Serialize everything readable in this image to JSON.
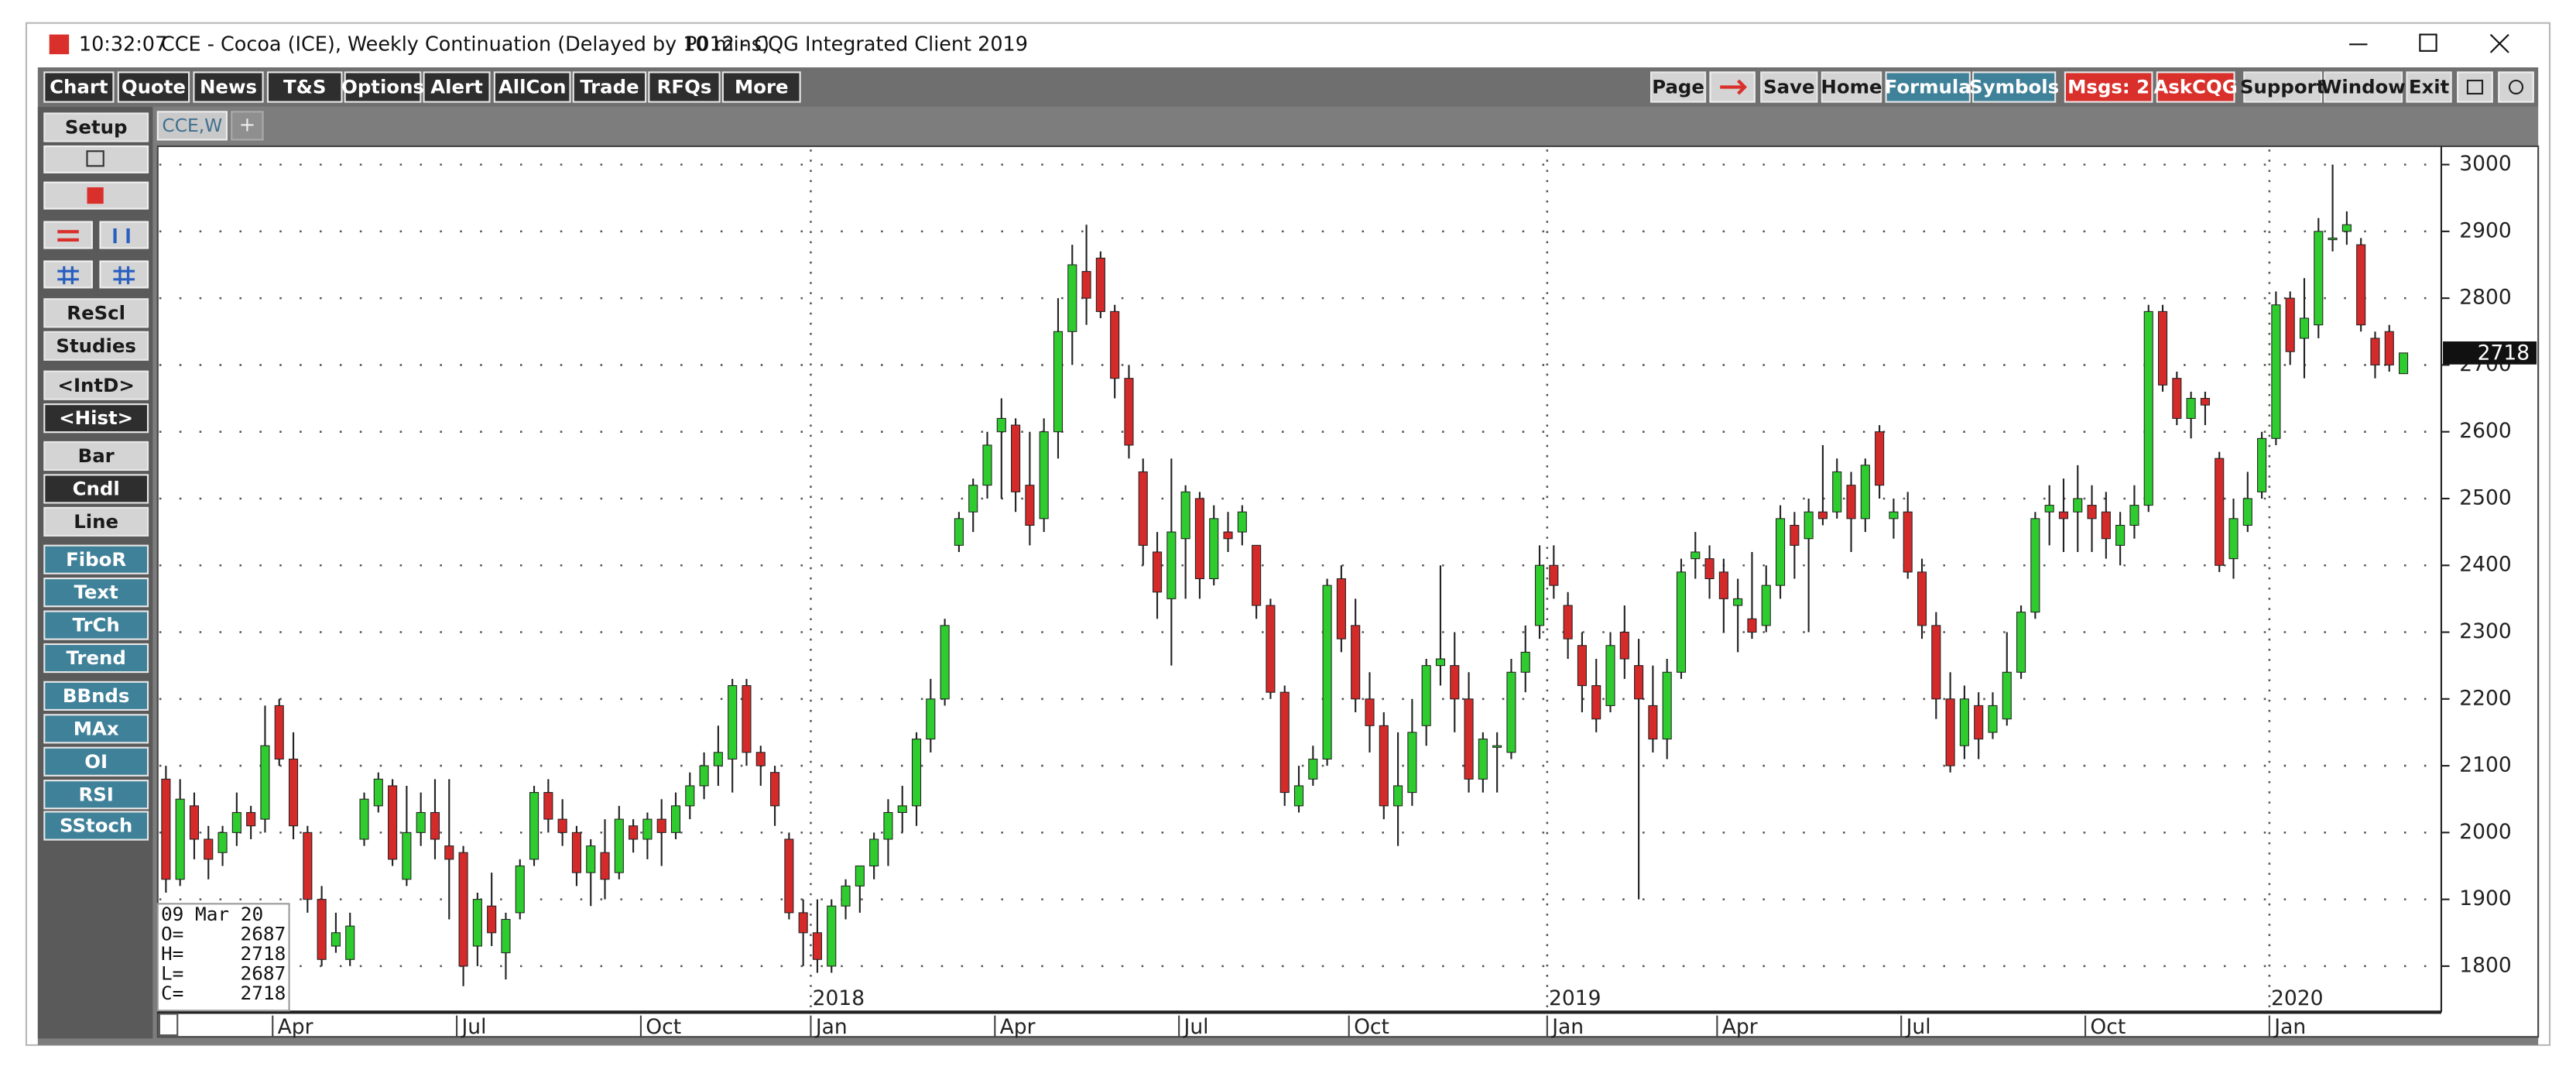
{
  "window": {
    "time": "10:32:07",
    "title": "CCE - Cocoa (ICE), Weekly Continuation (Delayed by 10 mins)",
    "client": "P012 - CQG Integrated Client 2019"
  },
  "menu": [
    "Chart",
    "Quote",
    "News",
    "T&S",
    "Options",
    "Alert",
    "AllCon",
    "Trade",
    "RFQs",
    "More"
  ],
  "toolbar": [
    {
      "label": "Page",
      "color": "#d4d4d4"
    },
    {
      "label": "Save",
      "color": "#d4d4d4"
    },
    {
      "label": "Home",
      "color": "#d4d4d4"
    },
    {
      "label": "Formula",
      "color": "#3f8199"
    },
    {
      "label": "Symbols",
      "color": "#3f8199"
    },
    {
      "label": "Msgs: 2",
      "color": "#d9302b"
    },
    {
      "label": "AskCQG",
      "color": "#d9302b"
    },
    {
      "label": "Support",
      "color": "#d4d4d4"
    },
    {
      "label": "Window",
      "color": "#d4d4d4"
    },
    {
      "label": "Exit",
      "color": "#d4d4d4"
    }
  ],
  "side_buttons": [
    {
      "label": "Setup",
      "color": "#d4d4d4"
    },
    {
      "label": "ReScl",
      "color": "#d4d4d4"
    },
    {
      "label": "Studies",
      "color": "#d4d4d4"
    },
    {
      "label": "<IntD>",
      "color": "#d4d4d4"
    },
    {
      "label": "<Hist>",
      "color": "#2e2e2e"
    },
    {
      "label": "Bar",
      "color": "#d4d4d4"
    },
    {
      "label": "Cndl",
      "color": "#2e2e2e"
    },
    {
      "label": "Line",
      "color": "#d4d4d4"
    },
    {
      "label": "FiboR",
      "color": "#3f8199"
    },
    {
      "label": "Text",
      "color": "#3f8199"
    },
    {
      "label": "TrCh",
      "color": "#3f8199"
    },
    {
      "label": "Trend",
      "color": "#3f8199"
    },
    {
      "label": "BBnds",
      "color": "#3f8199"
    },
    {
      "label": "MAx",
      "color": "#3f8199"
    },
    {
      "label": "OI",
      "color": "#3f8199"
    },
    {
      "label": "RSI",
      "color": "#3f8199"
    },
    {
      "label": "SStoch",
      "color": "#3f8199"
    }
  ],
  "tab": "CCE,W",
  "tab_add": "+",
  "info_box": {
    "date": "09 Mar 20",
    "rows": [
      {
        "label": "O=",
        "value": 2687
      },
      {
        "label": "H=",
        "value": 2718
      },
      {
        "label": "L=",
        "value": 2687
      },
      {
        "label": "C=",
        "value": 2718
      }
    ]
  },
  "chart_data": {
    "type": "candlestick",
    "up_color": "#2ecc2e",
    "down_color": "#d42a2a",
    "grid": true,
    "ylim": [
      1731,
      3025
    ],
    "yticks": [
      1800,
      1900,
      2000,
      2100,
      2200,
      2300,
      2400,
      2500,
      2600,
      2700,
      2800,
      2900,
      3000
    ],
    "last_price": 2718,
    "categories": [
      null,
      null,
      null,
      null,
      null,
      null,
      null,
      null,
      "Apr",
      null,
      null,
      null,
      null,
      null,
      null,
      null,
      null,
      null,
      null,
      null,
      null,
      "Jul",
      null,
      null,
      null,
      null,
      null,
      null,
      null,
      null,
      null,
      null,
      null,
      null,
      "Oct",
      null,
      null,
      null,
      null,
      null,
      null,
      null,
      null,
      null,
      null,
      null,
      "Jan",
      null,
      null,
      null,
      null,
      null,
      null,
      null,
      null,
      null,
      null,
      null,
      null,
      "Apr",
      null,
      null,
      null,
      null,
      null,
      null,
      null,
      null,
      null,
      null,
      null,
      null,
      "Jul",
      null,
      null,
      null,
      null,
      null,
      null,
      null,
      null,
      null,
      null,
      null,
      "Oct",
      null,
      null,
      null,
      null,
      null,
      null,
      null,
      null,
      null,
      null,
      null,
      null,
      null,
      "Jan",
      null,
      null,
      null,
      null,
      null,
      null,
      null,
      null,
      null,
      null,
      null,
      "Apr",
      null,
      null,
      null,
      null,
      null,
      null,
      null,
      null,
      null,
      null,
      null,
      null,
      "Jul",
      null,
      null,
      null,
      null,
      null,
      null,
      null,
      null,
      null,
      null,
      null,
      null,
      "Oct",
      null,
      null,
      null,
      null,
      null,
      null,
      null,
      null,
      null,
      null,
      null,
      null,
      "Jan",
      null,
      null,
      null,
      null,
      null,
      null,
      null,
      null,
      null
    ],
    "year_labels": [
      null,
      null,
      null,
      null,
      null,
      null,
      null,
      null,
      null,
      null,
      null,
      null,
      null,
      null,
      null,
      null,
      null,
      null,
      null,
      null,
      null,
      null,
      null,
      null,
      null,
      null,
      null,
      null,
      null,
      null,
      null,
      null,
      null,
      null,
      null,
      null,
      null,
      null,
      null,
      null,
      null,
      null,
      null,
      null,
      null,
      null,
      "2018",
      null,
      null,
      null,
      null,
      null,
      null,
      null,
      null,
      null,
      null,
      null,
      null,
      null,
      null,
      null,
      null,
      null,
      null,
      null,
      null,
      null,
      null,
      null,
      null,
      null,
      null,
      null,
      null,
      null,
      null,
      null,
      null,
      null,
      null,
      null,
      null,
      null,
      null,
      null,
      null,
      null,
      null,
      null,
      null,
      null,
      null,
      null,
      null,
      null,
      null,
      null,
      "2019",
      null,
      null,
      null,
      null,
      null,
      null,
      null,
      null,
      null,
      null,
      null,
      null,
      null,
      null,
      null,
      null,
      null,
      null,
      null,
      null,
      null,
      null,
      null,
      null,
      null,
      null,
      null,
      null,
      null,
      null,
      null,
      null,
      null,
      null,
      null,
      null,
      null,
      null,
      null,
      null,
      null,
      null,
      null,
      null,
      null,
      null,
      null,
      null,
      null,
      null,
      "2020",
      null,
      null,
      null,
      null,
      null,
      null,
      null,
      null,
      null
    ],
    "open": [
      2080,
      1930,
      2040,
      1990,
      1970,
      2000,
      2030,
      2020,
      2190,
      2110,
      2000,
      1900,
      1830,
      1810,
      1990,
      2040,
      2070,
      1930,
      2000,
      2030,
      1980,
      1970,
      1830,
      1890,
      1820,
      1880,
      1960,
      2060,
      2020,
      2000,
      1940,
      1970,
      1940,
      2010,
      1990,
      2020,
      2000,
      2040,
      2070,
      2100,
      2110,
      2220,
      2120,
      2090,
      1990,
      1880,
      1850,
      1800,
      1890,
      1920,
      1950,
      1990,
      2030,
      2040,
      2140,
      2200,
      2430,
      2480,
      2520,
      2600,
      2610,
      2520,
      2470,
      2600,
      2750,
      2840,
      2860,
      2780,
      2680,
      2540,
      2420,
      2350,
      2440,
      2500,
      2380,
      2450,
      2450,
      2430,
      2340,
      2210,
      2040,
      2080,
      2110,
      2380,
      2310,
      2200,
      2160,
      2040,
      2060,
      2160,
      2250,
      2250,
      2200,
      2080,
      2130,
      2120,
      2240,
      2310,
      2400,
      2340,
      2280,
      2220,
      2190,
      2300,
      2250,
      2190,
      2140,
      2240,
      2410,
      2410,
      2390,
      2340,
      2320,
      2310,
      2370,
      2460,
      2440,
      2480,
      2480,
      2520,
      2470,
      2600,
      2470,
      2480,
      2390,
      2310,
      2200,
      2130,
      2190,
      2150,
      2170,
      2240,
      2330,
      2480,
      2480,
      2480,
      2490,
      2480,
      2430,
      2460,
      2490,
      2780,
      2680,
      2620,
      2650,
      2560,
      2410,
      2460,
      2510,
      2590,
      2800,
      2740,
      2760,
      2890,
      2900,
      2880,
      2740,
      2750,
      2687
    ],
    "high": [
      2100,
      2080,
      2060,
      2010,
      2010,
      2060,
      2040,
      2190,
      2200,
      2150,
      2010,
      1920,
      1880,
      1880,
      2060,
      2090,
      2080,
      2070,
      2060,
      2080,
      2080,
      1980,
      1910,
      1940,
      1880,
      1960,
      2070,
      2080,
      2050,
      2010,
      1990,
      2020,
      2040,
      2020,
      2030,
      2050,
      2060,
      2090,
      2120,
      2160,
      2230,
      2230,
      2130,
      2100,
      2000,
      1900,
      1900,
      1900,
      1930,
      1950,
      2000,
      2050,
      2070,
      2150,
      2230,
      2320,
      2480,
      2530,
      2600,
      2650,
      2620,
      2600,
      2620,
      2800,
      2880,
      2910,
      2870,
      2790,
      2700,
      2560,
      2450,
      2560,
      2520,
      2510,
      2490,
      2480,
      2490,
      2430,
      2350,
      2220,
      2100,
      2130,
      2380,
      2400,
      2350,
      2240,
      2180,
      2150,
      2200,
      2260,
      2400,
      2300,
      2240,
      2150,
      2150,
      2260,
      2310,
      2430,
      2430,
      2360,
      2300,
      2260,
      2300,
      2340,
      2290,
      2250,
      2260,
      2410,
      2450,
      2430,
      2410,
      2380,
      2420,
      2400,
      2490,
      2480,
      2500,
      2580,
      2560,
      2540,
      2560,
      2610,
      2500,
      2510,
      2410,
      2330,
      2240,
      2220,
      2210,
      2210,
      2300,
      2340,
      2480,
      2520,
      2530,
      2550,
      2520,
      2510,
      2480,
      2520,
      2790,
      2790,
      2690,
      2660,
      2660,
      2570,
      2500,
      2540,
      2600,
      2810,
      2810,
      2830,
      2920,
      3000,
      2930,
      2890,
      2750,
      2760,
      2718
    ],
    "low": [
      1910,
      1920,
      1960,
      1930,
      1950,
      1980,
      1990,
      2000,
      2100,
      1990,
      1880,
      1800,
      1820,
      1800,
      1980,
      2030,
      1950,
      1920,
      1980,
      1960,
      1870,
      1770,
      1800,
      1830,
      1780,
      1870,
      1950,
      2000,
      1980,
      1920,
      1890,
      1900,
      1930,
      1970,
      1960,
      1950,
      1990,
      2020,
      2050,
      2070,
      2060,
      2100,
      2070,
      2010,
      1870,
      1800,
      1790,
      1790,
      1870,
      1880,
      1930,
      1950,
      2000,
      2010,
      2120,
      2190,
      2420,
      2450,
      2500,
      2500,
      2480,
      2430,
      2450,
      2560,
      2700,
      2760,
      2770,
      2650,
      2560,
      2400,
      2320,
      2250,
      2350,
      2350,
      2370,
      2420,
      2430,
      2320,
      2200,
      2040,
      2030,
      2070,
      2100,
      2270,
      2180,
      2120,
      2020,
      1980,
      2040,
      2130,
      2220,
      2150,
      2060,
      2060,
      2060,
      2110,
      2210,
      2290,
      2350,
      2260,
      2180,
      2150,
      2180,
      2230,
      1900,
      2120,
      2110,
      2230,
      2380,
      2350,
      2300,
      2270,
      2290,
      2300,
      2350,
      2380,
      2300,
      2460,
      2470,
      2420,
      2450,
      2500,
      2440,
      2380,
      2290,
      2170,
      2090,
      2110,
      2110,
      2140,
      2160,
      2230,
      2320,
      2430,
      2420,
      2420,
      2420,
      2410,
      2400,
      2440,
      2480,
      2660,
      2610,
      2590,
      2610,
      2390,
      2380,
      2450,
      2500,
      2580,
      2700,
      2680,
      2740,
      2870,
      2880,
      2750,
      2680,
      2690,
      2687
    ],
    "close": [
      1930,
      2050,
      1990,
      1960,
      2000,
      2030,
      2010,
      2130,
      2110,
      2010,
      1900,
      1810,
      1850,
      1860,
      2050,
      2080,
      1960,
      2000,
      2030,
      1990,
      1960,
      1800,
      1900,
      1850,
      1870,
      1950,
      2060,
      2020,
      2000,
      1940,
      1980,
      1930,
      2020,
      1990,
      2020,
      2000,
      2040,
      2070,
      2100,
      2120,
      2220,
      2120,
      2100,
      2040,
      1880,
      1850,
      1810,
      1890,
      1920,
      1950,
      1990,
      2030,
      2040,
      2140,
      2200,
      2310,
      2470,
      2520,
      2580,
      2620,
      2510,
      2460,
      2600,
      2750,
      2850,
      2800,
      2780,
      2680,
      2580,
      2430,
      2360,
      2450,
      2510,
      2380,
      2470,
      2440,
      2480,
      2340,
      2210,
      2060,
      2070,
      2110,
      2370,
      2290,
      2200,
      2160,
      2040,
      2070,
      2150,
      2250,
      2260,
      2200,
      2080,
      2140,
      2130,
      2240,
      2270,
      2400,
      2370,
      2290,
      2220,
      2170,
      2280,
      2260,
      2200,
      2140,
      2240,
      2390,
      2420,
      2380,
      2350,
      2350,
      2300,
      2370,
      2470,
      2430,
      2480,
      2470,
      2540,
      2470,
      2550,
      2520,
      2480,
      2390,
      2310,
      2200,
      2100,
      2200,
      2140,
      2190,
      2240,
      2330,
      2470,
      2490,
      2470,
      2500,
      2470,
      2440,
      2460,
      2490,
      2780,
      2670,
      2620,
      2650,
      2640,
      2400,
      2470,
      2500,
      2590,
      2790,
      2720,
      2770,
      2900,
      2890,
      2910,
      2760,
      2700,
      2700,
      2718
    ]
  }
}
